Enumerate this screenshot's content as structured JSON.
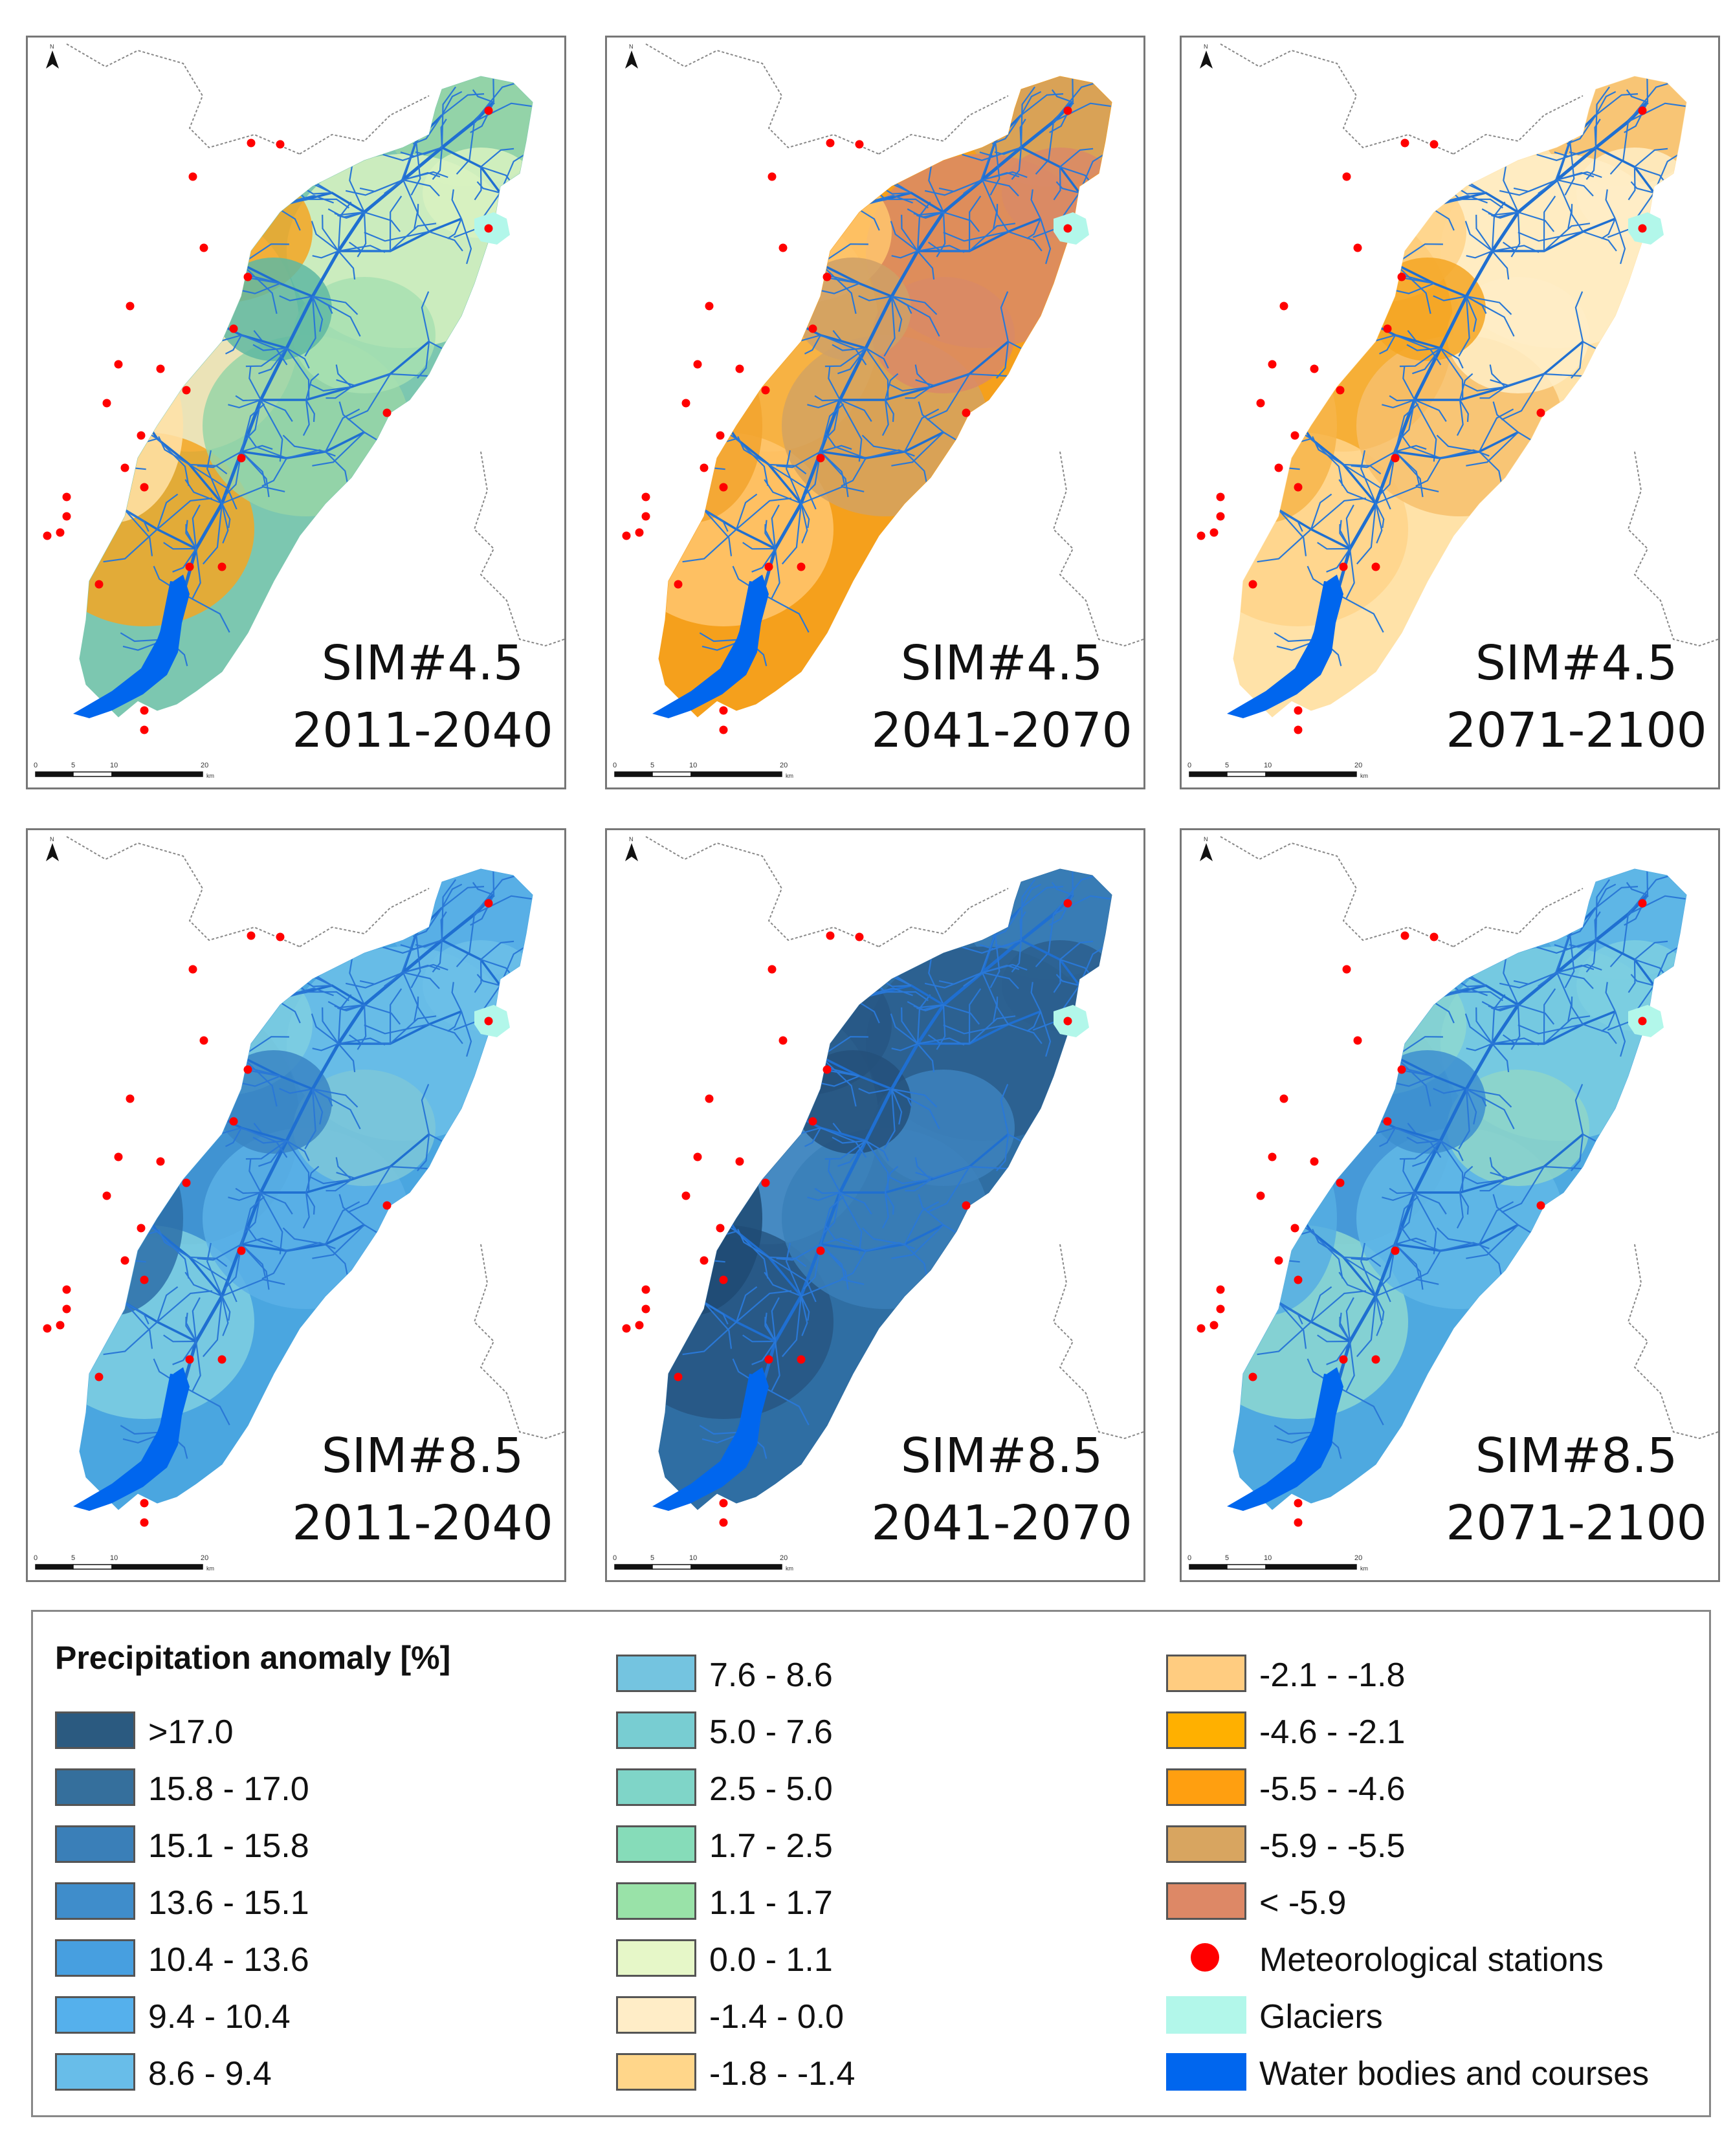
{
  "panels": [
    {
      "sim": "SIM#4.5",
      "period": "2011-2040",
      "palette": [
        "#7cc7b0",
        "#98d5a7",
        "#d9f2c1",
        "#ffe8b8",
        "#f5a623"
      ],
      "shades": [
        "#5fb9a2",
        "#a8e0b1",
        "#ffe2a8"
      ]
    },
    {
      "sim": "SIM#4.5",
      "period": "2041-2070",
      "palette": [
        "#f5a01c",
        "#d4a260",
        "#d98a66",
        "#f7b54a",
        "#ffc66e"
      ],
      "shades": [
        "#cfa066",
        "#d98a66",
        "#f2a32e"
      ]
    },
    {
      "sim": "SIM#4.5",
      "period": "2071-2100",
      "palette": [
        "#ffe2a8",
        "#f7c06c",
        "#ffedc7",
        "#f5a623",
        "#ffd48a"
      ],
      "shades": [
        "#f5a623",
        "#ffedc7",
        "#f7b54a"
      ]
    },
    {
      "sim": "SIM#8.5",
      "period": "2011-2040",
      "palette": [
        "#4aa6e0",
        "#5ab0e6",
        "#6cc0e8",
        "#3e8fcf",
        "#7fcfe0"
      ],
      "shades": [
        "#3a85c4",
        "#7cc7d8",
        "#2d6fa8"
      ]
    },
    {
      "sim": "SIM#8.5",
      "period": "2041-2070",
      "palette": [
        "#2f6ea3",
        "#3a7fb8",
        "#2b5f8e",
        "#4a8fc8",
        "#275683"
      ],
      "shades": [
        "#24507a",
        "#3d83bd",
        "#1f4a73"
      ]
    },
    {
      "sim": "SIM#8.5",
      "period": "2071-2100",
      "palette": [
        "#4ea9e0",
        "#62b8e6",
        "#7dcfe0",
        "#4596d6",
        "#8ed8d0"
      ],
      "shades": [
        "#3d8fd0",
        "#8fd6c8",
        "#56aee3"
      ]
    }
  ],
  "scalebar": {
    "ticks": [
      "0",
      "5",
      "10",
      "20"
    ],
    "unit": "km"
  },
  "north_symbol": "N",
  "legend": {
    "title": "Precipitation anomaly [%]",
    "items": [
      {
        "label": ">17.0",
        "color": "#2b5a80"
      },
      {
        "label": "15.8 - 17.0",
        "color": "#356f9c"
      },
      {
        "label": "15.1 - 15.8",
        "color": "#3a7fb8"
      },
      {
        "label": "13.6 - 15.1",
        "color": "#3f8dcb"
      },
      {
        "label": "10.4 - 13.6",
        "color": "#479fe0"
      },
      {
        "label": "9.4 - 10.4",
        "color": "#55b0ec"
      },
      {
        "label": "8.6 - 9.4",
        "color": "#68bde9"
      },
      {
        "label": "7.6 - 8.6",
        "color": "#74c4e0"
      },
      {
        "label": "5.0 - 7.6",
        "color": "#78cdd2"
      },
      {
        "label": "2.5 - 5.0",
        "color": "#7fd5c8"
      },
      {
        "label": "1.7 - 2.5",
        "color": "#86dcb9"
      },
      {
        "label": "1.1 - 1.7",
        "color": "#99e2a8"
      },
      {
        "label": "0.0 - 1.1",
        "color": "#e6f7c8"
      },
      {
        "label": "-1.4 - 0.0",
        "color": "#ffedc7"
      },
      {
        "label": "-1.8 - -1.4",
        "color": "#ffd68a"
      },
      {
        "label": "-2.1 - -1.8",
        "color": "#ffcc80"
      },
      {
        "label": "-4.6 - -2.1",
        "color": "#ffb000"
      },
      {
        "label": "-5.5 - -4.6",
        "color": "#ff9f10"
      },
      {
        "label": "-5.9 - -5.5",
        "color": "#d8a560"
      },
      {
        "label": "< -5.9",
        "color": "#dd8866"
      },
      {
        "label": "Meteorological stations",
        "color": "#ff0000"
      },
      {
        "label": "Glaciers",
        "color": "#b2f7ea"
      },
      {
        "label": "Water bodies and courses",
        "color": "#0066ee"
      }
    ]
  }
}
